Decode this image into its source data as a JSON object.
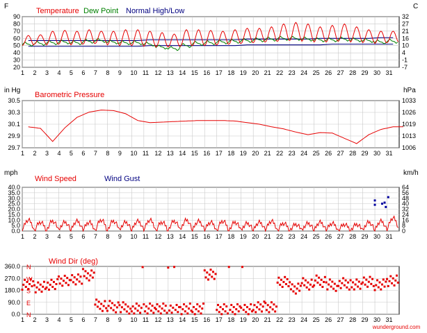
{
  "colors": {
    "temperature": "#e60000",
    "dew_point": "#008000",
    "normal_high_low": "#000080",
    "grid": "#c8c8c8",
    "axis": "#000000",
    "label": "#000000",
    "gust": "#0000a0"
  },
  "footer": "wunderground.com",
  "chart_data": [
    {
      "type": "line",
      "legend": [
        "Temperature",
        "Dew Point",
        "Normal High/Low"
      ],
      "left_unit": "F",
      "right_unit": "C",
      "yticks_left": [
        "90",
        "80",
        "70",
        "60",
        "50",
        "40",
        "30",
        "20"
      ],
      "yticks_right": [
        "32",
        "27",
        "21",
        "16",
        "10",
        "4",
        "-1",
        "-7"
      ],
      "ylim": [
        20,
        90
      ],
      "x": [
        "1",
        "2",
        "3",
        "4",
        "5",
        "6",
        "7",
        "8",
        "9",
        "10",
        "11",
        "12",
        "13",
        "14",
        "15",
        "16",
        "17",
        "18",
        "19",
        "20",
        "21",
        "22",
        "23",
        "24",
        "25",
        "26",
        "27",
        "28",
        "29",
        "30",
        "31"
      ],
      "daily_high": [
        64,
        65,
        70,
        71,
        70,
        72,
        70,
        70,
        72,
        72,
        70,
        68,
        66,
        72,
        72,
        71,
        70,
        72,
        74,
        74,
        76,
        80,
        82,
        80,
        76,
        78,
        80,
        76,
        72,
        70,
        70
      ],
      "daily_low": [
        50,
        52,
        51,
        52,
        51,
        52,
        53,
        51,
        50,
        50,
        49,
        48,
        48,
        49,
        50,
        50,
        51,
        52,
        53,
        54,
        55,
        56,
        57,
        56,
        55,
        55,
        56,
        55,
        54,
        53,
        54
      ],
      "dew_point": [
        52,
        53,
        54,
        55,
        54,
        56,
        57,
        55,
        54,
        54,
        52,
        48,
        46,
        50,
        53,
        54,
        55,
        56,
        57,
        58,
        59,
        60,
        60,
        59,
        58,
        58,
        59,
        58,
        57,
        55,
        56
      ],
      "normal_high": [
        57,
        57,
        57,
        57,
        57,
        57,
        57,
        57,
        57,
        57,
        58,
        58,
        58,
        58,
        58,
        58,
        58,
        58,
        59,
        59,
        59,
        59,
        59,
        59,
        60,
        60,
        60,
        60,
        60,
        61,
        61
      ],
      "normal_low": [
        49,
        49,
        49,
        49,
        49,
        49,
        49,
        49,
        49,
        49,
        50,
        50,
        50,
        50,
        50,
        50,
        50,
        50,
        51,
        51,
        51,
        51,
        51,
        51,
        51,
        52,
        52,
        52,
        52,
        52,
        52
      ]
    },
    {
      "type": "line",
      "title": "Barometric Pressure",
      "left_unit": "in Hg",
      "right_unit": "hPa",
      "yticks_left": [
        "30.5",
        "30.3",
        "30.1",
        "29.9",
        "29.7"
      ],
      "yticks_right": [
        "1033",
        "1026",
        "1019",
        "1013",
        "1006"
      ],
      "ylim": [
        29.7,
        30.6
      ],
      "x": [
        "1",
        "2",
        "3",
        "4",
        "5",
        "6",
        "7",
        "8",
        "9",
        "10",
        "11",
        "12",
        "13",
        "14",
        "15",
        "16",
        "17",
        "18",
        "19",
        "20",
        "21",
        "22",
        "23",
        "24",
        "25",
        "26",
        "27",
        "28",
        "29",
        "30",
        "31"
      ],
      "values": [
        30.1,
        30.07,
        29.82,
        30.08,
        30.28,
        30.38,
        30.42,
        30.41,
        30.35,
        30.22,
        30.18,
        30.19,
        30.2,
        30.21,
        30.22,
        30.22,
        30.22,
        30.21,
        30.18,
        30.15,
        30.1,
        30.06,
        30.0,
        29.95,
        29.99,
        29.98,
        29.88,
        29.78,
        29.95,
        30.05,
        30.1
      ]
    },
    {
      "type": "line",
      "legend": [
        "Wind Speed",
        "Wind Gust"
      ],
      "left_unit": "mph",
      "right_unit": "km/h",
      "yticks_left": [
        "40.0",
        "35.0",
        "30.0",
        "25.0",
        "20.0",
        "15.0",
        "10.0",
        "5.0",
        "0.0"
      ],
      "yticks_right": [
        "64",
        "56",
        "48",
        "40",
        "32",
        "24",
        "16",
        "8",
        "0"
      ],
      "ylim": [
        0,
        40
      ],
      "x": [
        "1",
        "2",
        "3",
        "4",
        "5",
        "6",
        "7",
        "8",
        "9",
        "10",
        "11",
        "12",
        "13",
        "14",
        "15",
        "16",
        "17",
        "18",
        "19",
        "20",
        "21",
        "22",
        "23",
        "24",
        "25",
        "26",
        "27",
        "28",
        "29",
        "30",
        "31"
      ],
      "wind_speed_peak": [
        10,
        8,
        9,
        8,
        9,
        8,
        10,
        9,
        8,
        9,
        10,
        8,
        9,
        10,
        9,
        8,
        9,
        8,
        7,
        8,
        9,
        7,
        6,
        7,
        8,
        7,
        6,
        6,
        8,
        9,
        12
      ],
      "wind_gust_points": [
        [
          30.0,
          28
        ],
        [
          30.0,
          24
        ],
        [
          30.6,
          25
        ],
        [
          30.8,
          26
        ],
        [
          31.1,
          31
        ],
        [
          30.9,
          22
        ]
      ]
    },
    {
      "type": "scatter",
      "title": "Wind Dir (deg)",
      "yticks_left": [
        "360.0",
        "270.0",
        "180.0",
        "90.0",
        "0.0"
      ],
      "compass_labels": [
        "N",
        "W",
        "S",
        "E",
        "N"
      ],
      "ylim": [
        0,
        360
      ],
      "x": [
        "1",
        "2",
        "3",
        "4",
        "5",
        "6",
        "7",
        "8",
        "9",
        "10",
        "11",
        "12",
        "13",
        "14",
        "15",
        "16",
        "17",
        "18",
        "19",
        "20",
        "21",
        "22",
        "23",
        "24",
        "25",
        "26",
        "27",
        "28",
        "29",
        "30",
        "31"
      ],
      "daily_dir": [
        230,
        210,
        230,
        260,
        270,
        300,
        70,
        60,
        50,
        40,
        40,
        40,
        30,
        40,
        40,
        300,
        40,
        40,
        40,
        60,
        60,
        250,
        200,
        230,
        250,
        220,
        230,
        220,
        240,
        220,
        250
      ]
    }
  ]
}
